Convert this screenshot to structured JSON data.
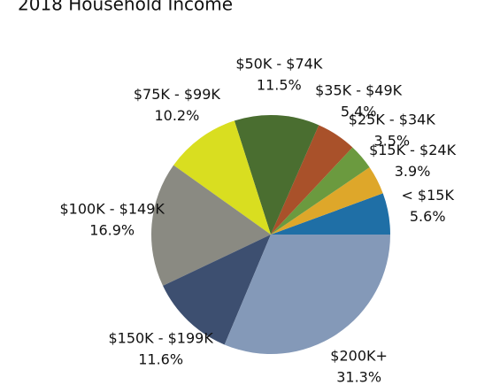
{
  "chart_data": {
    "type": "pie",
    "title": "2018 Household Income",
    "categories": [
      "< $15K",
      "$15K - $24K",
      "$25K - $34K",
      "$35K - $49K",
      "$50K - $74K",
      "$75K - $99K",
      "$100K - $149K",
      "$150K - $199K",
      "$200K+"
    ],
    "values": [
      5.6,
      3.9,
      3.5,
      5.4,
      11.5,
      10.2,
      16.9,
      11.6,
      31.3
    ],
    "value_labels": [
      "5.6%",
      "3.9%",
      "3.5%",
      "5.4%",
      "11.5%",
      "10.2%",
      "16.9%",
      "11.6%",
      "31.3%"
    ],
    "colors": [
      "#1f6fa6",
      "#dea72a",
      "#6b9a3f",
      "#a9512a",
      "#4a6e30",
      "#d9de20",
      "#8a8a82",
      "#3d4f70",
      "#8499b8"
    ]
  }
}
